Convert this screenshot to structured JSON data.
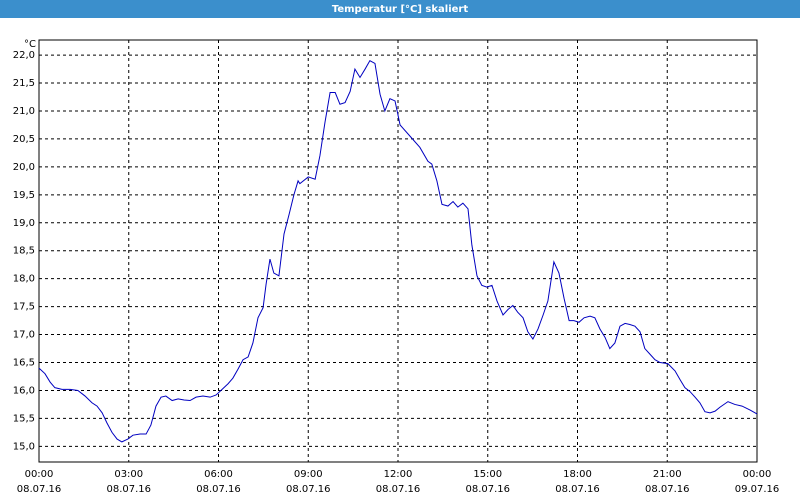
{
  "chart_data": {
    "type": "line",
    "title": "Temperatur [°C] skaliert",
    "y_unit": "°C",
    "x": [
      0,
      0.2,
      0.37,
      0.53,
      0.77,
      1.04,
      1.3,
      1.54,
      1.77,
      1.94,
      2.11,
      2.27,
      2.44,
      2.61,
      2.77,
      2.97,
      3.14,
      3.38,
      3.58,
      3.74,
      3.91,
      4.08,
      4.24,
      4.45,
      4.65,
      4.85,
      5.05,
      5.25,
      5.48,
      5.72,
      5.92,
      6.12,
      6.32,
      6.48,
      6.65,
      6.82,
      6.99,
      7.15,
      7.32,
      7.49,
      7.59,
      7.72,
      7.85,
      8.02,
      8.19,
      8.36,
      8.52,
      8.66,
      8.72,
      9.0,
      9.23,
      9.39,
      9.56,
      9.73,
      9.9,
      10.06,
      10.23,
      10.4,
      10.56,
      10.73,
      10.9,
      11.06,
      11.23,
      11.4,
      11.56,
      11.73,
      11.9,
      12.07,
      12.4,
      12.73,
      13.0,
      13.13,
      13.3,
      13.47,
      13.67,
      13.84,
      14.0,
      14.17,
      14.34,
      14.47,
      14.64,
      14.8,
      14.97,
      15.14,
      15.31,
      15.51,
      15.68,
      15.84,
      16.0,
      16.18,
      16.34,
      16.51,
      16.68,
      16.85,
      17.01,
      17.21,
      17.38,
      17.55,
      17.72,
      17.88,
      18.05,
      18.22,
      18.42,
      18.58,
      18.75,
      18.92,
      19.08,
      19.25,
      19.42,
      19.59,
      19.75,
      19.92,
      20.09,
      20.25,
      20.42,
      20.59,
      20.76,
      21.02,
      21.26,
      21.42,
      21.59,
      21.76,
      21.93,
      22.09,
      22.26,
      22.43,
      22.6,
      22.76,
      23.03,
      23.26,
      23.5,
      23.77,
      24.0
    ],
    "series": [
      {
        "color": "#0000c0",
        "values": [
          16.4,
          16.3,
          16.15,
          16.05,
          16.02,
          16.02,
          16.0,
          15.9,
          15.78,
          15.72,
          15.6,
          15.42,
          15.25,
          15.13,
          15.08,
          15.13,
          15.2,
          15.22,
          15.22,
          15.38,
          15.72,
          15.88,
          15.9,
          15.82,
          15.85,
          15.83,
          15.82,
          15.88,
          15.9,
          15.88,
          15.92,
          16.02,
          16.12,
          16.22,
          16.38,
          16.55,
          16.6,
          16.85,
          17.3,
          17.48,
          17.9,
          18.35,
          18.1,
          18.05,
          18.8,
          19.15,
          19.5,
          19.75,
          19.7,
          19.82,
          19.78,
          20.2,
          20.8,
          21.33,
          21.33,
          21.12,
          21.15,
          21.35,
          21.75,
          21.6,
          21.75,
          21.9,
          21.85,
          21.3,
          21.0,
          21.22,
          21.18,
          20.75,
          20.55,
          20.35,
          20.1,
          20.05,
          19.75,
          19.33,
          19.3,
          19.38,
          19.28,
          19.35,
          19.25,
          18.6,
          18.05,
          17.88,
          17.85,
          17.88,
          17.6,
          17.35,
          17.45,
          17.52,
          17.4,
          17.3,
          17.05,
          16.92,
          17.1,
          17.35,
          17.6,
          18.3,
          18.1,
          17.65,
          17.25,
          17.25,
          17.22,
          17.3,
          17.33,
          17.3,
          17.1,
          16.95,
          16.75,
          16.85,
          17.15,
          17.2,
          17.18,
          17.15,
          17.05,
          16.75,
          16.65,
          16.55,
          16.5,
          16.48,
          16.35,
          16.2,
          16.05,
          15.98,
          15.88,
          15.78,
          15.62,
          15.6,
          15.63,
          15.7,
          15.8,
          15.75,
          15.72,
          15.65,
          15.58
        ]
      }
    ],
    "xlim": [
      0,
      24
    ],
    "ylim": [
      14.72,
      22.27
    ],
    "xticks": [
      {
        "value": 0,
        "label": "00:00",
        "date": "08.07.16"
      },
      {
        "value": 3,
        "label": "03:00",
        "date": "08.07.16"
      },
      {
        "value": 6,
        "label": "06:00",
        "date": "08.07.16"
      },
      {
        "value": 9,
        "label": "09:00",
        "date": "08.07.16"
      },
      {
        "value": 12,
        "label": "12:00",
        "date": "08.07.16"
      },
      {
        "value": 15,
        "label": "15:00",
        "date": "08.07.16"
      },
      {
        "value": 18,
        "label": "18:00",
        "date": "08.07.16"
      },
      {
        "value": 21,
        "label": "21:00",
        "date": "08.07.16"
      },
      {
        "value": 24,
        "label": "00:00",
        "date": "09.07.16"
      }
    ],
    "yticks": [
      {
        "value": 15,
        "label": "15,0"
      },
      {
        "value": 15.5,
        "label": "15,5"
      },
      {
        "value": 16,
        "label": "16,0"
      },
      {
        "value": 16.5,
        "label": "16,5"
      },
      {
        "value": 17,
        "label": "17,0"
      },
      {
        "value": 17.5,
        "label": "17,5"
      },
      {
        "value": 18,
        "label": "18,0"
      },
      {
        "value": 18.5,
        "label": "18,5"
      },
      {
        "value": 19,
        "label": "19,0"
      },
      {
        "value": 19.5,
        "label": "19,5"
      },
      {
        "value": 20,
        "label": "20,0"
      },
      {
        "value": 20.5,
        "label": "20,5"
      },
      {
        "value": 21,
        "label": "21,0"
      },
      {
        "value": 21.5,
        "label": "21,5"
      },
      {
        "value": 22,
        "label": "22,0"
      }
    ],
    "grid": true
  }
}
